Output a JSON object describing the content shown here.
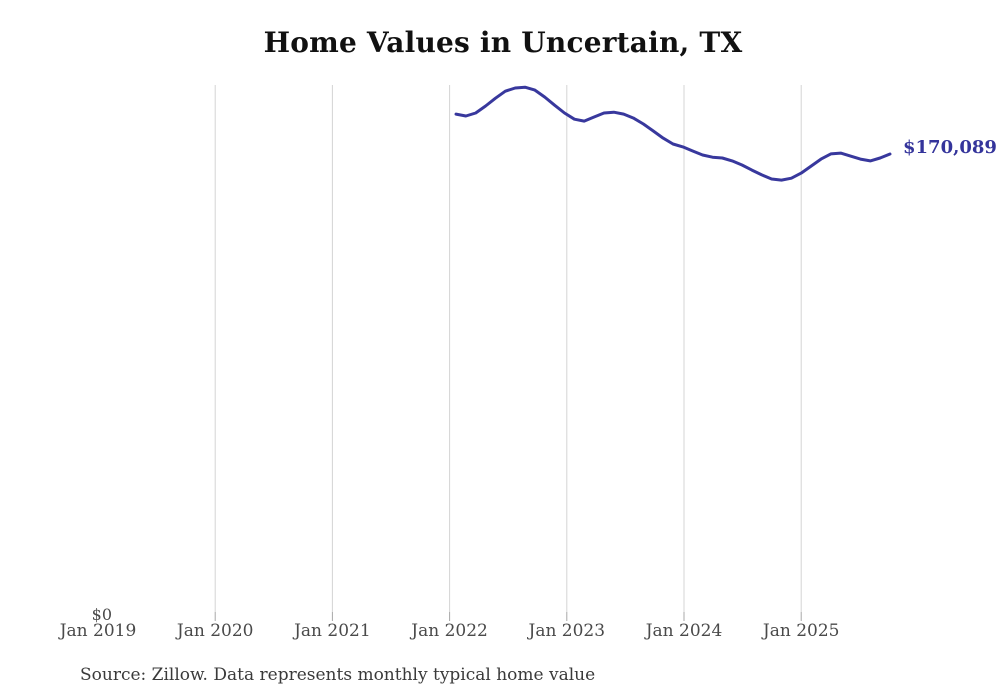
{
  "chart": {
    "title": "Home Values in Uncertain, TX",
    "y_zero_label": "$0",
    "end_label": "$170,089",
    "source_note": "Source: Zillow. Data represents monthly typical home value"
  },
  "colors": {
    "background": "#ffffff",
    "line": "#38389d",
    "end_label_text": "#34349b",
    "gridline": "#d4d4d4",
    "tick": "#a8a8a8",
    "axis_text": "#4a4a4a",
    "title_text": "#111111",
    "source_text": "#3a3a3a"
  },
  "chart_data": {
    "type": "line",
    "title": "Home Values in Uncertain, TX",
    "xlabel": "",
    "ylabel": "",
    "ylim": [
      0,
      195700
    ],
    "grid": "vertical-only",
    "legend": "none",
    "x_tick_labels": [
      "Jan 2019",
      "Jan 2020",
      "Jan 2021",
      "Jan 2022",
      "Jan 2023",
      "Jan 2024",
      "Jan 2025"
    ],
    "y_tick_labels": [
      "$0"
    ],
    "last_value_label": "$170,089",
    "series": [
      {
        "name": "Monthly typical home value",
        "x": [
          "Feb 2022",
          "Mar 2022",
          "Apr 2022",
          "May 2022",
          "Jun 2022",
          "Jul 2022",
          "Aug 2022",
          "Sep 2022",
          "Oct 2022",
          "Nov 2022",
          "Dec 2022",
          "Jan 2023",
          "Feb 2023",
          "Mar 2023",
          "Apr 2023",
          "May 2023",
          "Jun 2023",
          "Jul 2023",
          "Aug 2023",
          "Sep 2023",
          "Oct 2023",
          "Nov 2023",
          "Dec 2023",
          "Jan 2024",
          "Feb 2024",
          "Mar 2024",
          "Apr 2024",
          "May 2024",
          "Jun 2024",
          "Jul 2024",
          "Aug 2024",
          "Sep 2024",
          "Oct 2024",
          "Nov 2024",
          "Dec 2024",
          "Jan 2025",
          "Feb 2025",
          "Mar 2025",
          "Apr 2025",
          "May 2025",
          "Jun 2025",
          "Jul 2025",
          "Aug 2025",
          "Sep 2025",
          "Oct 2025"
        ],
        "values": [
          184900,
          184200,
          185300,
          187900,
          190800,
          193400,
          194600,
          194900,
          193800,
          191200,
          188200,
          185300,
          183000,
          182300,
          183800,
          185300,
          185600,
          184900,
          183400,
          181200,
          178600,
          176000,
          173800,
          172700,
          171200,
          169700,
          168900,
          168600,
          167500,
          166000,
          164100,
          162300,
          160800,
          160400,
          161100,
          163000,
          165600,
          168200,
          170100,
          170400,
          169300,
          168200,
          167500,
          168600,
          170089
        ]
      }
    ]
  }
}
